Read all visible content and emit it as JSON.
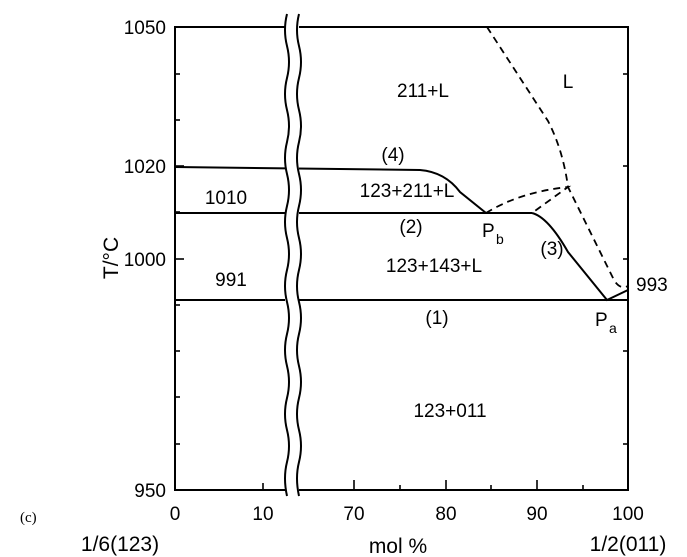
{
  "panel_label": "(c)",
  "axes": {
    "y_label": "T/°C",
    "x_label": "mol %",
    "x_left_label": "1/6(123)",
    "x_right_label": "1/2(011)",
    "y_ticks": [
      "1050",
      "1020",
      "1000",
      "950"
    ],
    "x_ticks_left": [
      "0",
      "10"
    ],
    "x_ticks_right": [
      "70",
      "80",
      "90",
      "100"
    ]
  },
  "regions": {
    "liquid": "L",
    "l211": "211+L",
    "l123_211": "123+211+L",
    "l123_143": "123+143+L",
    "solid": "123+011"
  },
  "annotations": {
    "t1010": "1010",
    "t991": "991",
    "t993": "993",
    "c1": "(1)",
    "c2": "(2)",
    "c3": "(3)",
    "c4": "(4)",
    "pb_main": "P",
    "pb_sub": "b",
    "pa_main": "P",
    "pa_sub": "a"
  },
  "chart_data": {
    "type": "phase-diagram",
    "xlabel": "mol %",
    "ylabel": "T/°C",
    "ylim": [
      950,
      1050
    ],
    "x_segments": [
      [
        0,
        13
      ],
      [
        65,
        100
      ]
    ],
    "isotherms": [
      {
        "name": "(1)",
        "T": 991
      },
      {
        "name": "(2)",
        "T": 1010
      }
    ],
    "curves": [
      {
        "name": "(4)",
        "style": "solid",
        "points": [
          [
            0,
            1020
          ],
          [
            78,
            1019
          ],
          [
            85,
            1010
          ]
        ]
      },
      {
        "name": "(3)",
        "style": "solid",
        "points": [
          [
            89,
            1010
          ],
          [
            97.6,
            991
          ]
        ]
      },
      {
        "name": "liquidus",
        "style": "dashed",
        "points": [
          [
            82,
            1050
          ],
          [
            92.5,
            1015.5
          ],
          [
            99,
            993
          ]
        ]
      },
      {
        "name": "peritectic-link",
        "style": "dashed",
        "points": [
          [
            85,
            1010
          ],
          [
            92.5,
            1015.5
          ],
          [
            89,
            1010
          ]
        ]
      }
    ],
    "points": [
      {
        "name": "Pb",
        "x": 85,
        "T": 1010
      },
      {
        "name": "Pa",
        "x": 97.6,
        "T": 991
      },
      {
        "name": "993",
        "x": 100,
        "T": 993
      }
    ]
  }
}
